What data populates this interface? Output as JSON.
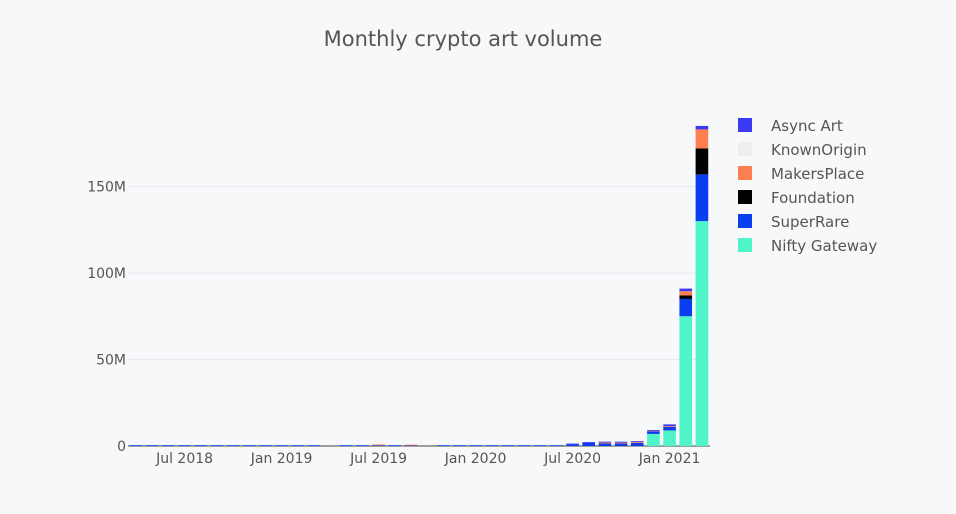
{
  "chart_data": {
    "type": "bar",
    "stacked": true,
    "title": "Monthly crypto art volume",
    "xlabel": "",
    "ylabel": "",
    "ylim": [
      0,
      200000000
    ],
    "yticks": [
      0,
      50000000,
      100000000,
      150000000
    ],
    "ytick_labels": [
      "0",
      "50M",
      "100M",
      "150M"
    ],
    "xticks": [
      "2018-07",
      "2019-01",
      "2019-07",
      "2020-01",
      "2020-07",
      "2021-01"
    ],
    "xtick_labels": [
      "Jul 2018",
      "Jan 2019",
      "Jul 2019",
      "Jan 2020",
      "Jul 2020",
      "Jan 2021"
    ],
    "legend_position": "right",
    "categories": [
      "2018-04",
      "2018-05",
      "2018-06",
      "2018-07",
      "2018-08",
      "2018-09",
      "2018-10",
      "2018-11",
      "2018-12",
      "2019-01",
      "2019-02",
      "2019-03",
      "2019-04",
      "2019-05",
      "2019-06",
      "2019-07",
      "2019-08",
      "2019-09",
      "2019-10",
      "2019-11",
      "2019-12",
      "2020-01",
      "2020-02",
      "2020-03",
      "2020-04",
      "2020-05",
      "2020-06",
      "2020-07",
      "2020-08",
      "2020-09",
      "2020-10",
      "2020-11",
      "2020-12",
      "2021-01",
      "2021-02",
      "2021-03"
    ],
    "series": [
      {
        "name": "Nifty Gateway",
        "color": "#4ff5c8",
        "values": [
          0,
          0,
          0,
          0,
          0,
          0,
          0,
          0,
          0,
          0,
          0,
          0,
          0,
          0,
          0,
          0,
          0,
          0,
          0,
          0,
          0,
          0,
          0,
          0,
          0,
          0,
          0,
          0,
          0,
          0,
          0,
          0,
          7000000,
          9000000,
          75000000,
          130000000
        ]
      },
      {
        "name": "SuperRare",
        "color": "#0a3ef0",
        "values": [
          200000,
          300000,
          300000,
          400000,
          300000,
          300000,
          300000,
          300000,
          300000,
          300000,
          300000,
          300000,
          0,
          400000,
          400000,
          400000,
          300000,
          300000,
          0,
          300000,
          300000,
          300000,
          300000,
          300000,
          300000,
          300000,
          300000,
          900000,
          1800000,
          1500000,
          1500000,
          1800000,
          1500000,
          2000000,
          10000000,
          27000000
        ]
      },
      {
        "name": "Foundation",
        "color": "#000000",
        "values": [
          0,
          0,
          0,
          0,
          0,
          0,
          0,
          0,
          0,
          0,
          0,
          0,
          0,
          0,
          0,
          0,
          0,
          0,
          0,
          0,
          0,
          0,
          0,
          0,
          0,
          0,
          0,
          0,
          0,
          0,
          0,
          0,
          0,
          0,
          2000000,
          15000000
        ]
      },
      {
        "name": "MakersPlace",
        "color": "#ff7f50",
        "values": [
          0,
          0,
          0,
          0,
          0,
          0,
          0,
          0,
          0,
          0,
          0,
          0,
          0,
          0,
          0,
          300000,
          0,
          300000,
          0,
          0,
          0,
          0,
          0,
          0,
          0,
          0,
          0,
          0,
          0,
          500000,
          500000,
          500000,
          200000,
          500000,
          2500000,
          11000000
        ]
      },
      {
        "name": "KnownOrigin",
        "color": "#eeeeee",
        "values": [
          0,
          0,
          0,
          0,
          0,
          0,
          0,
          0,
          0,
          0,
          0,
          0,
          0,
          0,
          0,
          0,
          0,
          0,
          0,
          0,
          0,
          0,
          0,
          0,
          0,
          0,
          0,
          0,
          0,
          0,
          0,
          0,
          0,
          0,
          0,
          0
        ]
      },
      {
        "name": "Async Art",
        "color": "#3a3af5",
        "values": [
          0,
          0,
          0,
          0,
          0,
          0,
          0,
          0,
          0,
          0,
          0,
          0,
          0,
          0,
          0,
          0,
          0,
          0,
          0,
          0,
          0,
          0,
          0,
          0,
          0,
          0,
          0,
          500000,
          500000,
          500000,
          500000,
          500000,
          500000,
          1000000,
          1500000,
          2000000
        ]
      }
    ]
  }
}
